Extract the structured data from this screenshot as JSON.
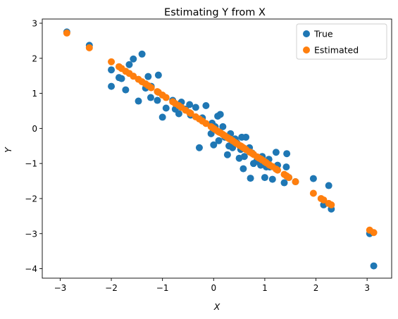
{
  "chart_data": {
    "type": "scatter",
    "title": "Estimating Y from X",
    "xlabel": "X",
    "ylabel": "Y",
    "xlim": [
      -3.35,
      3.48
    ],
    "ylim": [
      -4.27,
      3.12
    ],
    "xticks": [
      -3,
      -2,
      -1,
      0,
      1,
      2,
      3
    ],
    "yticks": [
      -4,
      -3,
      -2,
      -1,
      0,
      1,
      2,
      3
    ],
    "grid": false,
    "legend_position": "top-right",
    "series": [
      {
        "name": "True",
        "color": "#1f77b4",
        "points": [
          [
            -2.87,
            2.75
          ],
          [
            -2.43,
            2.37
          ],
          [
            -2.0,
            1.67
          ],
          [
            -2.0,
            1.2
          ],
          [
            -1.85,
            1.45
          ],
          [
            -1.8,
            1.42
          ],
          [
            -1.72,
            1.1
          ],
          [
            -1.65,
            1.82
          ],
          [
            -1.57,
            1.98
          ],
          [
            -1.47,
            0.78
          ],
          [
            -1.4,
            2.12
          ],
          [
            -1.33,
            1.15
          ],
          [
            -1.28,
            1.48
          ],
          [
            -1.23,
            0.88
          ],
          [
            -1.22,
            1.2
          ],
          [
            -1.1,
            0.8
          ],
          [
            -1.08,
            1.52
          ],
          [
            -1.0,
            0.32
          ],
          [
            -0.93,
            0.58
          ],
          [
            -0.8,
            0.8
          ],
          [
            -0.75,
            0.55
          ],
          [
            -0.68,
            0.42
          ],
          [
            -0.63,
            0.75
          ],
          [
            -0.55,
            0.55
          ],
          [
            -0.47,
            0.68
          ],
          [
            -0.45,
            0.38
          ],
          [
            -0.35,
            0.6
          ],
          [
            -0.28,
            -0.55
          ],
          [
            -0.22,
            0.3
          ],
          [
            -0.15,
            0.65
          ],
          [
            -0.05,
            -0.15
          ],
          [
            -0.03,
            0.15
          ],
          [
            0.0,
            -0.47
          ],
          [
            0.03,
            0.05
          ],
          [
            0.08,
            0.35
          ],
          [
            0.1,
            -0.35
          ],
          [
            0.13,
            0.4
          ],
          [
            0.18,
            0.05
          ],
          [
            0.22,
            -0.25
          ],
          [
            0.27,
            -0.75
          ],
          [
            0.3,
            -0.5
          ],
          [
            0.33,
            -0.15
          ],
          [
            0.37,
            -0.55
          ],
          [
            0.42,
            -0.3
          ],
          [
            0.45,
            -0.4
          ],
          [
            0.5,
            -0.85
          ],
          [
            0.53,
            -0.6
          ],
          [
            0.55,
            -0.25
          ],
          [
            0.58,
            -1.15
          ],
          [
            0.6,
            -0.8
          ],
          [
            0.63,
            -0.25
          ],
          [
            0.7,
            -0.55
          ],
          [
            0.72,
            -1.42
          ],
          [
            0.75,
            -0.7
          ],
          [
            0.78,
            -1.0
          ],
          [
            0.85,
            -0.9
          ],
          [
            0.88,
            -0.95
          ],
          [
            0.92,
            -1.05
          ],
          [
            0.95,
            -0.8
          ],
          [
            1.0,
            -1.4
          ],
          [
            1.03,
            -1.1
          ],
          [
            1.08,
            -0.88
          ],
          [
            1.1,
            -1.1
          ],
          [
            1.15,
            -1.45
          ],
          [
            1.22,
            -0.68
          ],
          [
            1.25,
            -1.05
          ],
          [
            1.38,
            -1.55
          ],
          [
            1.42,
            -1.1
          ],
          [
            1.43,
            -0.72
          ],
          [
            1.47,
            -1.4
          ],
          [
            1.6,
            -1.52
          ],
          [
            1.95,
            -1.43
          ],
          [
            2.15,
            -2.18
          ],
          [
            2.25,
            -1.63
          ],
          [
            2.3,
            -2.3
          ],
          [
            3.05,
            -3.0
          ],
          [
            3.13,
            -3.92
          ]
        ]
      },
      {
        "name": "Estimated",
        "color": "#ff7f0e",
        "points": [
          [
            -2.87,
            2.72
          ],
          [
            -2.43,
            2.3
          ],
          [
            -2.0,
            1.9
          ],
          [
            -1.85,
            1.76
          ],
          [
            -1.8,
            1.71
          ],
          [
            -1.72,
            1.63
          ],
          [
            -1.65,
            1.57
          ],
          [
            -1.57,
            1.49
          ],
          [
            -1.47,
            1.4
          ],
          [
            -1.4,
            1.33
          ],
          [
            -1.33,
            1.27
          ],
          [
            -1.28,
            1.22
          ],
          [
            -1.23,
            1.17
          ],
          [
            -1.22,
            1.16
          ],
          [
            -1.1,
            1.05
          ],
          [
            -1.08,
            1.03
          ],
          [
            -1.0,
            0.95
          ],
          [
            -0.93,
            0.88
          ],
          [
            -0.8,
            0.76
          ],
          [
            -0.75,
            0.71
          ],
          [
            -0.68,
            0.65
          ],
          [
            -0.63,
            0.6
          ],
          [
            -0.55,
            0.52
          ],
          [
            -0.47,
            0.45
          ],
          [
            -0.45,
            0.43
          ],
          [
            -0.35,
            0.33
          ],
          [
            -0.28,
            0.27
          ],
          [
            -0.22,
            0.21
          ],
          [
            -0.15,
            0.14
          ],
          [
            -0.05,
            0.05
          ],
          [
            -0.03,
            0.03
          ],
          [
            0.0,
            0.0
          ],
          [
            0.03,
            -0.03
          ],
          [
            0.08,
            -0.08
          ],
          [
            0.1,
            -0.1
          ],
          [
            0.13,
            -0.12
          ],
          [
            0.18,
            -0.17
          ],
          [
            0.22,
            -0.21
          ],
          [
            0.27,
            -0.26
          ],
          [
            0.3,
            -0.29
          ],
          [
            0.33,
            -0.31
          ],
          [
            0.37,
            -0.35
          ],
          [
            0.42,
            -0.4
          ],
          [
            0.45,
            -0.43
          ],
          [
            0.5,
            -0.48
          ],
          [
            0.53,
            -0.5
          ],
          [
            0.55,
            -0.52
          ],
          [
            0.58,
            -0.55
          ],
          [
            0.6,
            -0.57
          ],
          [
            0.63,
            -0.6
          ],
          [
            0.7,
            -0.67
          ],
          [
            0.72,
            -0.68
          ],
          [
            0.75,
            -0.71
          ],
          [
            0.78,
            -0.74
          ],
          [
            0.85,
            -0.81
          ],
          [
            0.88,
            -0.84
          ],
          [
            0.92,
            -0.87
          ],
          [
            0.95,
            -0.9
          ],
          [
            1.0,
            -0.95
          ],
          [
            1.03,
            -0.98
          ],
          [
            1.08,
            -1.03
          ],
          [
            1.1,
            -1.05
          ],
          [
            1.15,
            -1.09
          ],
          [
            1.22,
            -1.16
          ],
          [
            1.25,
            -1.19
          ],
          [
            1.38,
            -1.31
          ],
          [
            1.42,
            -1.35
          ],
          [
            1.43,
            -1.36
          ],
          [
            1.47,
            -1.4
          ],
          [
            1.6,
            -1.52
          ],
          [
            1.95,
            -1.85
          ],
          [
            2.1,
            -2.0
          ],
          [
            2.15,
            -2.04
          ],
          [
            2.25,
            -2.14
          ],
          [
            2.3,
            -2.18
          ],
          [
            3.05,
            -2.9
          ],
          [
            3.13,
            -2.97
          ]
        ]
      }
    ]
  }
}
